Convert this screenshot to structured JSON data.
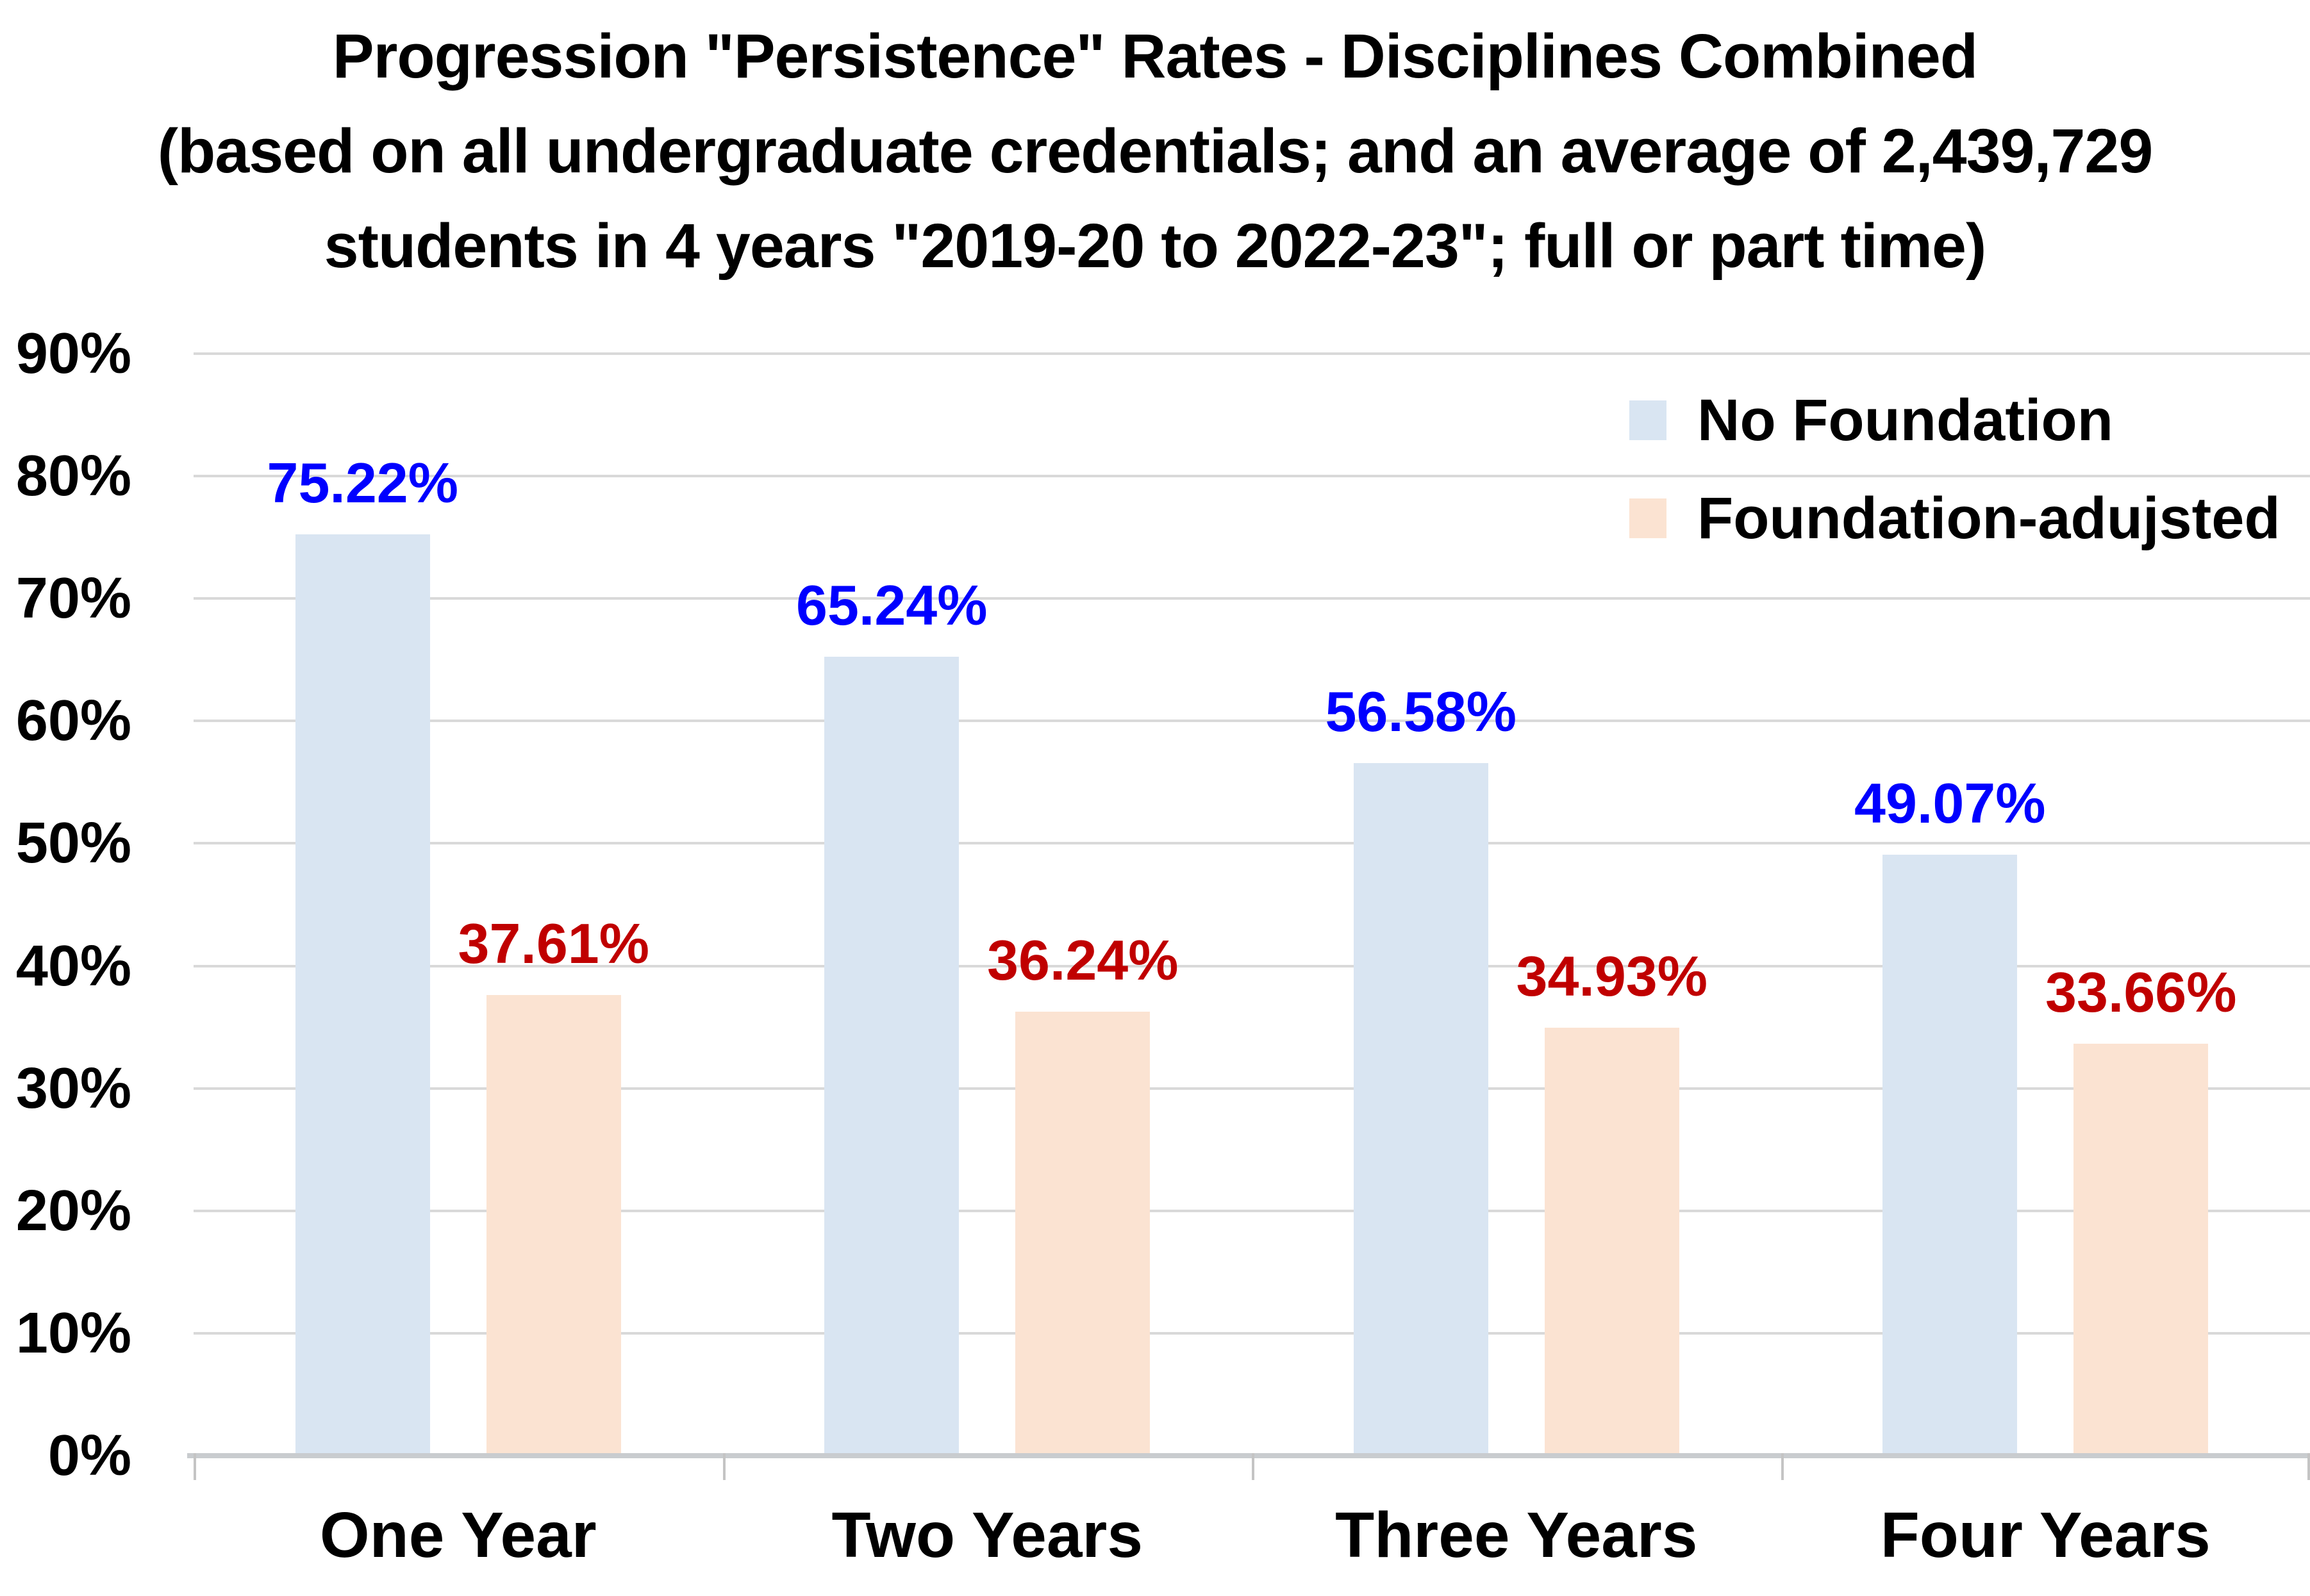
{
  "title_lines": [
    "Progression \"Persistence\" Rates - Disciplines Combined",
    "(based on all undergraduate credentials; and an average of 2,439,729",
    "students in 4 years \"2019-20 to 2022-23\"; full or part time)"
  ],
  "chart_data": {
    "type": "bar",
    "title": "Progression \"Persistence\" Rates - Disciplines Combined (based on all undergraduate credentials; and an average of 2,439,729 students in 4 years \"2019-20 to 2022-23\"; full or part time)",
    "categories": [
      "One Year",
      "Two Years",
      "Three Years",
      "Four Years"
    ],
    "series": [
      {
        "name": "No Foundation",
        "color": "#D9E5F2",
        "label_color": "#0000FF",
        "values": [
          75.22,
          65.24,
          56.58,
          49.07
        ],
        "labels": [
          "75.22%",
          "65.24%",
          "56.58%",
          "49.07%"
        ]
      },
      {
        "name": "Foundation-adujsted",
        "color": "#FBE3D2",
        "label_color": "#C00000",
        "values": [
          37.61,
          36.24,
          34.93,
          33.66
        ],
        "labels": [
          "37.61%",
          "36.24%",
          "34.93%",
          "33.66%"
        ]
      }
    ],
    "y_axis": {
      "min": 0,
      "max": 90,
      "step": 10,
      "tick_labels": [
        "0%",
        "10%",
        "20%",
        "30%",
        "40%",
        "50%",
        "60%",
        "70%",
        "80%",
        "90%"
      ]
    },
    "grid": true,
    "legend_position": "top-right",
    "data_labels": true
  },
  "colors": {
    "gridline": "#D9D9D9",
    "axis_line": "#C9CCCF",
    "tick": "#C4C4C4",
    "background": "#FFFFFF",
    "title_text": "#000000"
  }
}
